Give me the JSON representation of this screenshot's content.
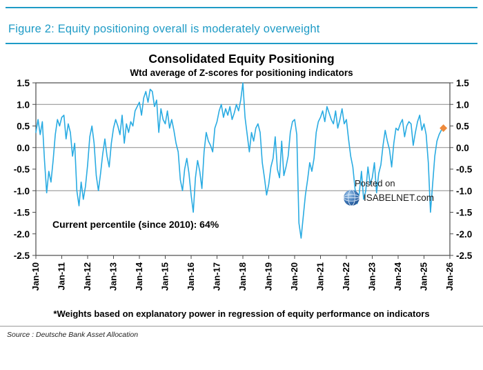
{
  "accent_color": "#1E9BC6",
  "figure": {
    "caption": "Figure 2: Equity positioning overall is moderately overweight"
  },
  "chart_data": {
    "type": "line",
    "title": "Consolidated Equity Positioning",
    "subtitle": "Wtd average of Z-scores for positioning indicators",
    "xlim": [
      2010,
      2026
    ],
    "ylim": [
      -2.5,
      1.5
    ],
    "x_tick_values": [
      2010,
      2011,
      2012,
      2013,
      2014,
      2015,
      2016,
      2017,
      2018,
      2019,
      2020,
      2021,
      2022,
      2023,
      2024,
      2025,
      2026
    ],
    "x_tick_labels": [
      "Jan-10",
      "Jan-11",
      "Jan-12",
      "Jan-13",
      "Jan-14",
      "Jan-15",
      "Jan-16",
      "Jan-17",
      "Jan-18",
      "Jan-19",
      "Jan-20",
      "Jan-21",
      "Jan-22",
      "Jan-23",
      "Jan-24",
      "Jan-25",
      "Jan-26"
    ],
    "y_ticks": [
      1.5,
      1.0,
      0.5,
      0.0,
      -0.5,
      -1.0,
      -1.5,
      -2.0,
      -2.5
    ],
    "gridlines_y": [
      1.0,
      0.0,
      -1.0
    ],
    "grid": true,
    "legend": "none",
    "line_color": "#29ABE2",
    "annotation": {
      "text": "Current percentile (since 2010): 64%",
      "position": "lower-left"
    },
    "marker": {
      "shape": "diamond",
      "color": "#EE8A3C",
      "x": 2025.75,
      "y": 0.45,
      "meaning": "latest value"
    },
    "series": [
      {
        "name": "Consolidated equity positioning (wtd avg of Z-scores)",
        "x_start": 2010.0,
        "x_step": 0.0833333333,
        "y": [
          0.35,
          0.65,
          0.3,
          0.6,
          -0.3,
          -1.05,
          -0.55,
          -0.8,
          -0.3,
          0.3,
          0.65,
          0.5,
          0.7,
          0.75,
          0.2,
          0.55,
          0.35,
          -0.2,
          0.1,
          -1.0,
          -1.35,
          -0.8,
          -1.2,
          -0.9,
          -0.4,
          0.25,
          0.5,
          0.1,
          -0.65,
          -1.0,
          -0.6,
          -0.15,
          0.2,
          -0.2,
          -0.45,
          0.1,
          0.45,
          0.65,
          0.5,
          0.3,
          0.75,
          0.1,
          0.55,
          0.35,
          0.6,
          0.5,
          0.85,
          0.95,
          1.05,
          0.75,
          1.15,
          1.3,
          1.05,
          1.35,
          1.3,
          0.95,
          1.1,
          0.35,
          0.9,
          0.65,
          0.55,
          0.85,
          0.45,
          0.65,
          0.4,
          0.1,
          -0.1,
          -0.75,
          -1.0,
          -0.5,
          -0.25,
          -0.6,
          -1.1,
          -1.5,
          -0.7,
          -0.3,
          -0.55,
          -0.95,
          -0.1,
          0.35,
          0.15,
          0.05,
          -0.1,
          0.45,
          0.6,
          0.85,
          1.0,
          0.7,
          0.9,
          0.75,
          0.95,
          0.65,
          0.8,
          1.0,
          0.85,
          1.1,
          1.5,
          0.7,
          0.3,
          -0.1,
          0.35,
          0.15,
          0.45,
          0.55,
          0.35,
          -0.35,
          -0.7,
          -1.1,
          -0.85,
          -0.45,
          -0.25,
          0.25,
          -0.5,
          -0.7,
          0.15,
          -0.65,
          -0.45,
          -0.2,
          0.35,
          0.6,
          0.65,
          0.3,
          -1.75,
          -2.1,
          -1.6,
          -1.1,
          -0.75,
          -0.35,
          -0.55,
          -0.25,
          0.35,
          0.6,
          0.7,
          0.85,
          0.6,
          0.95,
          0.8,
          0.65,
          0.55,
          0.85,
          0.45,
          0.65,
          0.9,
          0.55,
          0.65,
          0.2,
          -0.2,
          -0.45,
          -0.95,
          -1.3,
          -1.05,
          -0.55,
          -1.2,
          -1.0,
          -0.45,
          -0.85,
          -0.7,
          -0.35,
          -1.05,
          -0.6,
          -0.4,
          0.05,
          0.4,
          0.15,
          -0.05,
          -0.45,
          0.1,
          0.45,
          0.4,
          0.55,
          0.65,
          0.25,
          0.5,
          0.6,
          0.55,
          0.05,
          0.35,
          0.6,
          0.75,
          0.4,
          0.55,
          0.3,
          -0.35,
          -1.5,
          -0.85,
          -0.2,
          0.15,
          0.3,
          0.4
        ]
      }
    ]
  },
  "watermark": {
    "line1": "Posted on",
    "line2": "ISABELNET.com"
  },
  "footnote": "*Weights based on explanatory power in regression of equity performance on indicators",
  "source": "Source : Deutsche Bank Asset Allocation"
}
